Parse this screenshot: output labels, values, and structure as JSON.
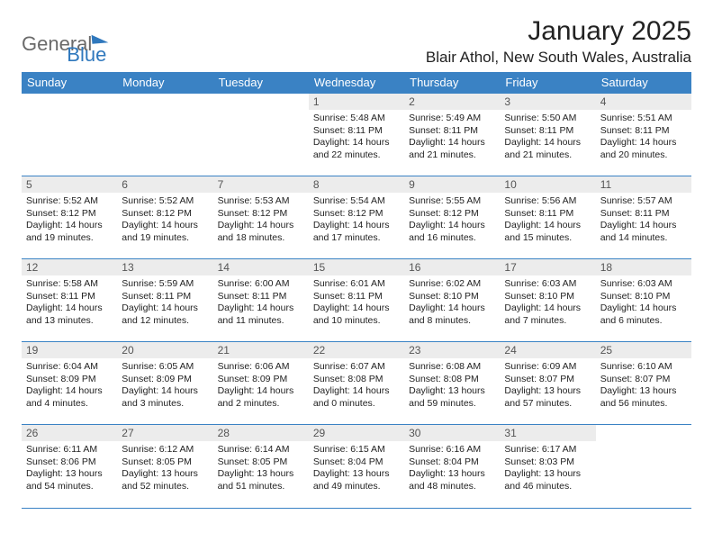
{
  "brand": {
    "word1": "General",
    "word2": "Blue"
  },
  "header": {
    "month_title": "January 2025",
    "location": "Blair Athol, New South Wales, Australia"
  },
  "colors": {
    "header_bg": "#3a82c4",
    "header_fg": "#ffffff",
    "rule": "#3a82c4",
    "daynum_bg": "#ececec",
    "blue": "#2f78bd",
    "gray": "#6a6a6a"
  },
  "weekdays": [
    "Sunday",
    "Monday",
    "Tuesday",
    "Wednesday",
    "Thursday",
    "Friday",
    "Saturday"
  ],
  "weeks": [
    [
      {
        "n": "",
        "l1": "",
        "l2": "",
        "l3": "",
        "l4": ""
      },
      {
        "n": "",
        "l1": "",
        "l2": "",
        "l3": "",
        "l4": ""
      },
      {
        "n": "",
        "l1": "",
        "l2": "",
        "l3": "",
        "l4": ""
      },
      {
        "n": "1",
        "l1": "Sunrise: 5:48 AM",
        "l2": "Sunset: 8:11 PM",
        "l3": "Daylight: 14 hours",
        "l4": "and 22 minutes."
      },
      {
        "n": "2",
        "l1": "Sunrise: 5:49 AM",
        "l2": "Sunset: 8:11 PM",
        "l3": "Daylight: 14 hours",
        "l4": "and 21 minutes."
      },
      {
        "n": "3",
        "l1": "Sunrise: 5:50 AM",
        "l2": "Sunset: 8:11 PM",
        "l3": "Daylight: 14 hours",
        "l4": "and 21 minutes."
      },
      {
        "n": "4",
        "l1": "Sunrise: 5:51 AM",
        "l2": "Sunset: 8:11 PM",
        "l3": "Daylight: 14 hours",
        "l4": "and 20 minutes."
      }
    ],
    [
      {
        "n": "5",
        "l1": "Sunrise: 5:52 AM",
        "l2": "Sunset: 8:12 PM",
        "l3": "Daylight: 14 hours",
        "l4": "and 19 minutes."
      },
      {
        "n": "6",
        "l1": "Sunrise: 5:52 AM",
        "l2": "Sunset: 8:12 PM",
        "l3": "Daylight: 14 hours",
        "l4": "and 19 minutes."
      },
      {
        "n": "7",
        "l1": "Sunrise: 5:53 AM",
        "l2": "Sunset: 8:12 PM",
        "l3": "Daylight: 14 hours",
        "l4": "and 18 minutes."
      },
      {
        "n": "8",
        "l1": "Sunrise: 5:54 AM",
        "l2": "Sunset: 8:12 PM",
        "l3": "Daylight: 14 hours",
        "l4": "and 17 minutes."
      },
      {
        "n": "9",
        "l1": "Sunrise: 5:55 AM",
        "l2": "Sunset: 8:12 PM",
        "l3": "Daylight: 14 hours",
        "l4": "and 16 minutes."
      },
      {
        "n": "10",
        "l1": "Sunrise: 5:56 AM",
        "l2": "Sunset: 8:11 PM",
        "l3": "Daylight: 14 hours",
        "l4": "and 15 minutes."
      },
      {
        "n": "11",
        "l1": "Sunrise: 5:57 AM",
        "l2": "Sunset: 8:11 PM",
        "l3": "Daylight: 14 hours",
        "l4": "and 14 minutes."
      }
    ],
    [
      {
        "n": "12",
        "l1": "Sunrise: 5:58 AM",
        "l2": "Sunset: 8:11 PM",
        "l3": "Daylight: 14 hours",
        "l4": "and 13 minutes."
      },
      {
        "n": "13",
        "l1": "Sunrise: 5:59 AM",
        "l2": "Sunset: 8:11 PM",
        "l3": "Daylight: 14 hours",
        "l4": "and 12 minutes."
      },
      {
        "n": "14",
        "l1": "Sunrise: 6:00 AM",
        "l2": "Sunset: 8:11 PM",
        "l3": "Daylight: 14 hours",
        "l4": "and 11 minutes."
      },
      {
        "n": "15",
        "l1": "Sunrise: 6:01 AM",
        "l2": "Sunset: 8:11 PM",
        "l3": "Daylight: 14 hours",
        "l4": "and 10 minutes."
      },
      {
        "n": "16",
        "l1": "Sunrise: 6:02 AM",
        "l2": "Sunset: 8:10 PM",
        "l3": "Daylight: 14 hours",
        "l4": "and 8 minutes."
      },
      {
        "n": "17",
        "l1": "Sunrise: 6:03 AM",
        "l2": "Sunset: 8:10 PM",
        "l3": "Daylight: 14 hours",
        "l4": "and 7 minutes."
      },
      {
        "n": "18",
        "l1": "Sunrise: 6:03 AM",
        "l2": "Sunset: 8:10 PM",
        "l3": "Daylight: 14 hours",
        "l4": "and 6 minutes."
      }
    ],
    [
      {
        "n": "19",
        "l1": "Sunrise: 6:04 AM",
        "l2": "Sunset: 8:09 PM",
        "l3": "Daylight: 14 hours",
        "l4": "and 4 minutes."
      },
      {
        "n": "20",
        "l1": "Sunrise: 6:05 AM",
        "l2": "Sunset: 8:09 PM",
        "l3": "Daylight: 14 hours",
        "l4": "and 3 minutes."
      },
      {
        "n": "21",
        "l1": "Sunrise: 6:06 AM",
        "l2": "Sunset: 8:09 PM",
        "l3": "Daylight: 14 hours",
        "l4": "and 2 minutes."
      },
      {
        "n": "22",
        "l1": "Sunrise: 6:07 AM",
        "l2": "Sunset: 8:08 PM",
        "l3": "Daylight: 14 hours",
        "l4": "and 0 minutes."
      },
      {
        "n": "23",
        "l1": "Sunrise: 6:08 AM",
        "l2": "Sunset: 8:08 PM",
        "l3": "Daylight: 13 hours",
        "l4": "and 59 minutes."
      },
      {
        "n": "24",
        "l1": "Sunrise: 6:09 AM",
        "l2": "Sunset: 8:07 PM",
        "l3": "Daylight: 13 hours",
        "l4": "and 57 minutes."
      },
      {
        "n": "25",
        "l1": "Sunrise: 6:10 AM",
        "l2": "Sunset: 8:07 PM",
        "l3": "Daylight: 13 hours",
        "l4": "and 56 minutes."
      }
    ],
    [
      {
        "n": "26",
        "l1": "Sunrise: 6:11 AM",
        "l2": "Sunset: 8:06 PM",
        "l3": "Daylight: 13 hours",
        "l4": "and 54 minutes."
      },
      {
        "n": "27",
        "l1": "Sunrise: 6:12 AM",
        "l2": "Sunset: 8:05 PM",
        "l3": "Daylight: 13 hours",
        "l4": "and 52 minutes."
      },
      {
        "n": "28",
        "l1": "Sunrise: 6:14 AM",
        "l2": "Sunset: 8:05 PM",
        "l3": "Daylight: 13 hours",
        "l4": "and 51 minutes."
      },
      {
        "n": "29",
        "l1": "Sunrise: 6:15 AM",
        "l2": "Sunset: 8:04 PM",
        "l3": "Daylight: 13 hours",
        "l4": "and 49 minutes."
      },
      {
        "n": "30",
        "l1": "Sunrise: 6:16 AM",
        "l2": "Sunset: 8:04 PM",
        "l3": "Daylight: 13 hours",
        "l4": "and 48 minutes."
      },
      {
        "n": "31",
        "l1": "Sunrise: 6:17 AM",
        "l2": "Sunset: 8:03 PM",
        "l3": "Daylight: 13 hours",
        "l4": "and 46 minutes."
      },
      {
        "n": "",
        "l1": "",
        "l2": "",
        "l3": "",
        "l4": ""
      }
    ]
  ]
}
